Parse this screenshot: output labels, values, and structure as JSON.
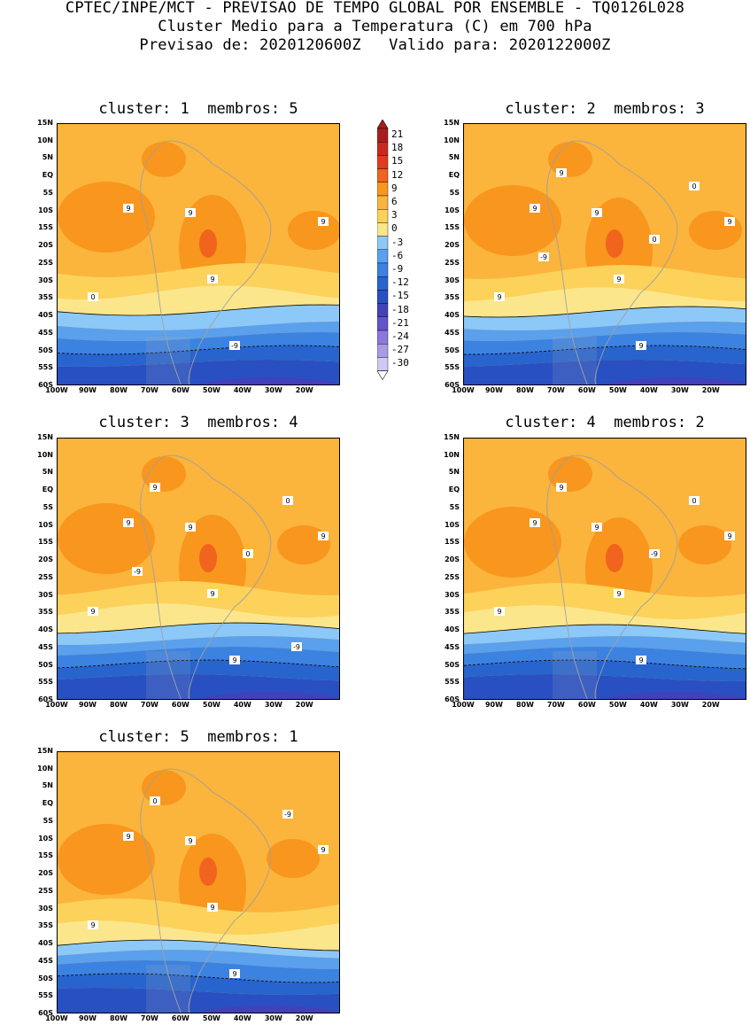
{
  "header": {
    "line1": "CPTEC/INPE/MCT - PREVISAO DE TEMPO GLOBAL POR ENSEMBLE - TQ0126L028",
    "line2": "Cluster Medio para a Temperatura (C) em 700 hPa",
    "line3": "Previsao de: 2020120600Z   Valido para: 2020122000Z"
  },
  "axes": {
    "lat_ticks": [
      "15N",
      "10N",
      "5N",
      "EQ",
      "5S",
      "10S",
      "15S",
      "20S",
      "25S",
      "30S",
      "35S",
      "40S",
      "45S",
      "50S",
      "55S",
      "60S"
    ],
    "lon_ticks": [
      "100W",
      "90W",
      "80W",
      "70W",
      "60W",
      "50W",
      "40W",
      "30W",
      "20W"
    ]
  },
  "panels": [
    {
      "title": "cluster: 1  membros: 5",
      "contour_labels": [
        "9",
        "9",
        "9",
        "9",
        "0",
        "-9"
      ]
    },
    {
      "title": "cluster: 2  membros: 3",
      "contour_labels": [
        "9",
        "9",
        "9",
        "9",
        "9",
        "9",
        "9",
        "0",
        "0",
        "-9"
      ]
    },
    {
      "title": "cluster: 3  membros: 4",
      "contour_labels": [
        "9",
        "9",
        "9",
        "9",
        "9",
        "9",
        "9",
        "0",
        "0",
        "-9",
        "-9"
      ]
    },
    {
      "title": "cluster: 4  membros: 2",
      "contour_labels": [
        "9",
        "9",
        "9",
        "9",
        "9",
        "9",
        "9",
        "0",
        "-9"
      ]
    },
    {
      "title": "cluster: 5  membros: 1",
      "contour_labels": [
        "9",
        "9",
        "9",
        "9",
        "9",
        "9",
        "0",
        "-9"
      ]
    }
  ],
  "colorbar": {
    "labels": [
      "21",
      "18",
      "15",
      "12",
      "9",
      "6",
      "3",
      "0",
      "-3",
      "-6",
      "-9",
      "-12",
      "-15",
      "-18",
      "-21",
      "-24",
      "-27",
      "-30"
    ],
    "colors": [
      "#a81e1e",
      "#c82a1e",
      "#e03c1e",
      "#f0641e",
      "#f8961e",
      "#fbb43c",
      "#fcd25a",
      "#fce68c",
      "#8cc8f8",
      "#5aa0ec",
      "#3c82e1",
      "#2864cd",
      "#2850c3",
      "#4141b9",
      "#6452cd",
      "#8c78dc",
      "#aa9be6",
      "#d2c8f5"
    ]
  }
}
